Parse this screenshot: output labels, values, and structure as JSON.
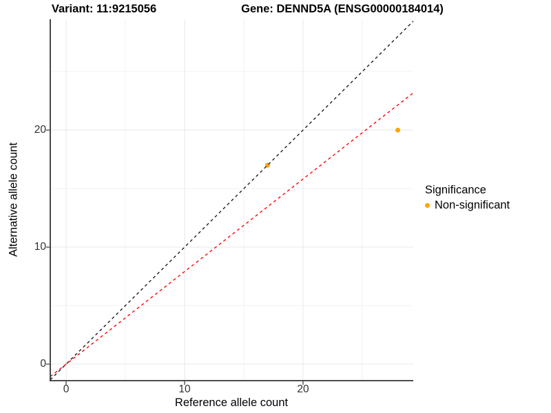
{
  "header": {
    "variant_title": "Variant: 11:9215056",
    "gene_title": "Gene: DENND5A (ENSG00000184014)"
  },
  "chart_data": {
    "type": "scatter",
    "title_left": "Variant: 11:9215056",
    "title_right": "Gene: DENND5A (ENSG00000184014)",
    "xlabel": "Reference allele count",
    "ylabel": "Alternative allele count",
    "xlim": [
      -1.34,
      29.3
    ],
    "ylim": [
      -1.41,
      29.5
    ],
    "x_major_ticks": [
      0,
      10,
      20
    ],
    "y_major_ticks": [
      0,
      10,
      20
    ],
    "x_minor_ticks": [
      5,
      15,
      25
    ],
    "y_minor_ticks": [
      5,
      15,
      25
    ],
    "grid": "on",
    "legend_position": "right",
    "points": [
      {
        "x": 17,
        "y": 17,
        "series": "Non-significant"
      },
      {
        "x": 28,
        "y": 20,
        "series": "Non-significant"
      }
    ],
    "reference_lines": [
      {
        "name": "identity-line",
        "slope": 1,
        "intercept": 0,
        "color": "#1a1a1a",
        "linetype": "dashed"
      },
      {
        "name": "fitted-line",
        "slope": 0.791,
        "intercept": 0,
        "color": "#ff0000",
        "linetype": "dashed"
      }
    ],
    "legend": {
      "title": "Significance",
      "items": [
        {
          "label": "Non-significant",
          "color": "#FFA500"
        }
      ]
    },
    "colors": {
      "point": "#FFA500",
      "grid_major": "#E7E7E7",
      "grid_minor": "#F2F2F2",
      "axis_line": "#333333",
      "tick_text": "#303030"
    }
  }
}
